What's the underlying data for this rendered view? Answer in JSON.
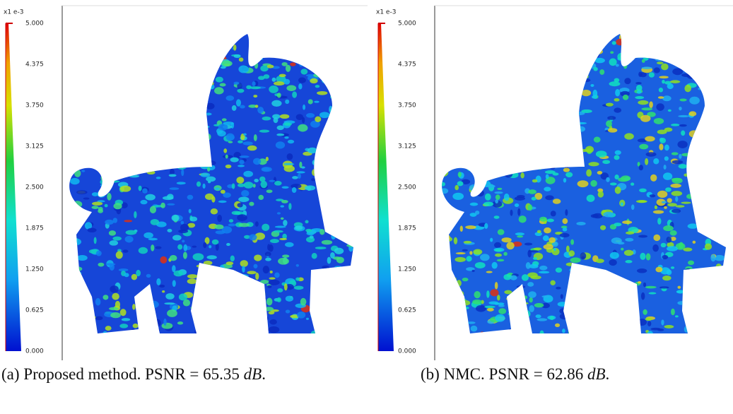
{
  "panels": [
    {
      "colorbar": {
        "unit": "x1 e-3",
        "ticks": [
          "5.000",
          "4.375",
          "3.750",
          "3.125",
          "2.500",
          "1.875",
          "1.250",
          "0.625",
          "0.000"
        ]
      },
      "caption": {
        "label": "(a)",
        "text": "Proposed method. PSNR = 65.35",
        "unit": "dB",
        "end": "."
      }
    },
    {
      "colorbar": {
        "unit": "x1 e-3",
        "ticks": [
          "5.000",
          "4.375",
          "3.750",
          "3.125",
          "2.500",
          "1.875",
          "1.250",
          "0.625",
          "0.000"
        ]
      },
      "caption": {
        "label": "(b)",
        "text": "NMC. PSNR = 62.86",
        "unit": "dB",
        "end": "."
      }
    }
  ]
}
